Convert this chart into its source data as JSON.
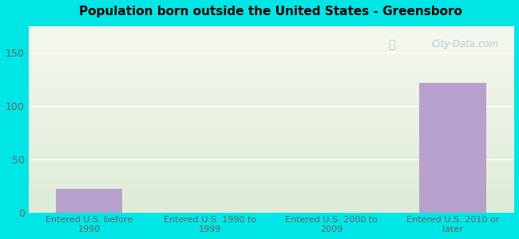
{
  "categories": [
    "Entered U.S. before\n1990",
    "Entered U.S. 1990 to\n1999",
    "Entered U.S. 2000 to\n2009",
    "Entered U.S. 2010 or\nlater"
  ],
  "values": [
    22,
    0,
    0,
    122
  ],
  "bar_color": "#b8a0cc",
  "title": "Population born outside the United States - Greensboro",
  "ylim": [
    0,
    175
  ],
  "yticks": [
    0,
    50,
    100,
    150
  ],
  "background_color": "#00e5e5",
  "plot_bg_top": "#f5f8ee",
  "plot_bg_bottom": "#deebd8",
  "grid_color": "#ffffff",
  "tick_color": "#666666",
  "title_color": "#000000",
  "watermark_text": "City-Data.com"
}
